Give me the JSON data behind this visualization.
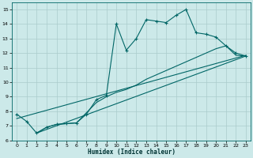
{
  "xlabel": "Humidex (Indice chaleur)",
  "bg_color": "#cce9e9",
  "line_color": "#006666",
  "grid_color": "#aacccc",
  "xlim": [
    -0.5,
    23.5
  ],
  "ylim": [
    6,
    15.5
  ],
  "xticks": [
    0,
    1,
    2,
    3,
    4,
    5,
    6,
    7,
    8,
    9,
    10,
    11,
    12,
    13,
    14,
    15,
    16,
    17,
    18,
    19,
    20,
    21,
    22,
    23
  ],
  "yticks": [
    6,
    7,
    8,
    9,
    10,
    11,
    12,
    13,
    14,
    15
  ],
  "line1_x": [
    0,
    1,
    2,
    3,
    4,
    5,
    6,
    7,
    8,
    9,
    10,
    11,
    12,
    13,
    14,
    15,
    16,
    17,
    18,
    19,
    20,
    21,
    22,
    23
  ],
  "line1_y": [
    7.8,
    7.3,
    6.5,
    6.9,
    7.1,
    7.15,
    7.2,
    7.8,
    8.8,
    9.1,
    14.0,
    12.2,
    13.0,
    14.3,
    14.2,
    14.1,
    14.6,
    15.0,
    13.4,
    13.3,
    13.1,
    12.5,
    12.0,
    11.8
  ],
  "line2_x": [
    2,
    3,
    4,
    5,
    6,
    7,
    8,
    9,
    10,
    11,
    12,
    13,
    14,
    15,
    16,
    17,
    18,
    19,
    20,
    21,
    22,
    23
  ],
  "line2_y": [
    6.5,
    6.9,
    7.1,
    7.15,
    7.2,
    7.9,
    8.6,
    9.0,
    9.3,
    9.5,
    9.8,
    10.2,
    10.5,
    10.8,
    11.1,
    11.4,
    11.7,
    12.0,
    12.3,
    12.5,
    11.85,
    11.8
  ],
  "line3_x": [
    0,
    23
  ],
  "line3_y": [
    7.5,
    11.85
  ],
  "line4_x": [
    2,
    23
  ],
  "line4_y": [
    6.5,
    11.8
  ]
}
